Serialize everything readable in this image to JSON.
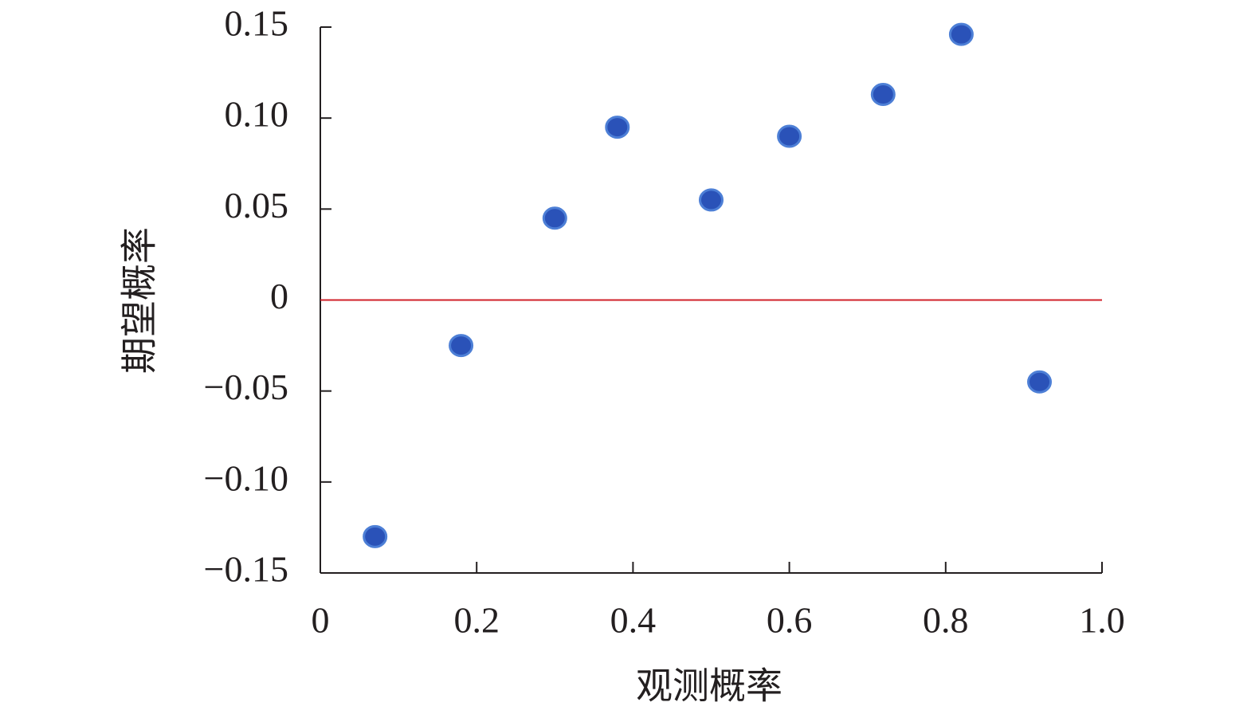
{
  "chart_data": {
    "type": "scatter",
    "xlabel": "观测概率",
    "ylabel": "期望概率",
    "x": [
      0.07,
      0.18,
      0.3,
      0.38,
      0.5,
      0.6,
      0.72,
      0.82,
      0.92
    ],
    "series": [
      {
        "color": "#2a52b8",
        "values": [
          -0.13,
          -0.025,
          0.045,
          0.095,
          0.055,
          0.09,
          0.113,
          0.146,
          -0.045
        ]
      }
    ],
    "xlim": [
      0,
      1.0
    ],
    "ylim": [
      -0.15,
      0.15
    ],
    "xticks": [
      0,
      0.2,
      0.4,
      0.6,
      0.8,
      {
        "value": 1.0,
        "label": "1.0"
      }
    ],
    "yticks": [
      {
        "value": -0.15,
        "label": "−0.15"
      },
      {
        "value": -0.1,
        "label": "−0.10"
      },
      {
        "value": -0.05,
        "label": "−0.05"
      },
      0,
      0.05,
      {
        "value": 0.1,
        "label": "0.10"
      },
      0.15
    ],
    "hline": {
      "value": 0,
      "color": "#d0202a"
    }
  }
}
